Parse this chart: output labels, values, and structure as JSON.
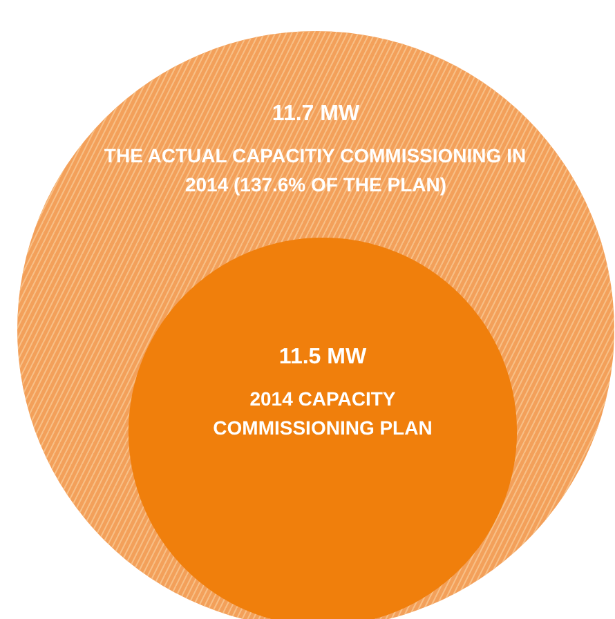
{
  "chart_data": {
    "type": "other",
    "categories": [
      "THE ACTUAL CAPACITIY COMMISSIONING IN 2014 (137.6% OF THE PLAN)",
      "2014 CAPACITY COMMISSIONING PLAN"
    ],
    "values": [
      11.7,
      11.5
    ],
    "value_labels": [
      "11.7 MW",
      "11.5 MW"
    ],
    "colors": [
      "#f3a05a",
      "#f07f0c"
    ]
  }
}
